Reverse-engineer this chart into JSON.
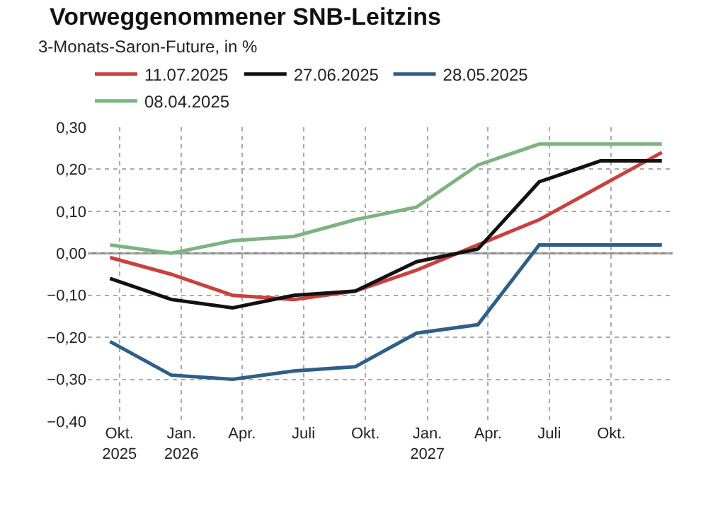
{
  "chart_data": {
    "type": "line",
    "title": "Vorweggenommener SNB-Leitzins",
    "subtitle": "3-Monats-Saron-Future, in %",
    "x": [
      "2025-09-17",
      "2025-12-17",
      "2026-03-18",
      "2026-06-17",
      "2026-09-16",
      "2026-12-16",
      "2027-03-17",
      "2027-06-16",
      "2027-09-15",
      "2027-12-15"
    ],
    "series": [
      {
        "name": "11.07.2025",
        "color": "#c8413f",
        "values": [
          -0.01,
          -0.05,
          -0.1,
          -0.11,
          -0.09,
          -0.04,
          0.02,
          0.08,
          0.16,
          0.24
        ]
      },
      {
        "name": "27.06.2025",
        "color": "#111111",
        "values": [
          -0.06,
          -0.11,
          -0.13,
          -0.1,
          -0.09,
          -0.02,
          0.01,
          0.17,
          0.22,
          0.22
        ]
      },
      {
        "name": "28.05.2025",
        "color": "#2f5f86",
        "values": [
          -0.21,
          -0.29,
          -0.3,
          -0.28,
          -0.27,
          -0.19,
          -0.17,
          0.02,
          0.02,
          0.02
        ]
      },
      {
        "name": "08.04.2025",
        "color": "#7fb283",
        "values": [
          0.02,
          0.0,
          0.03,
          0.04,
          0.08,
          0.11,
          0.21,
          0.26,
          0.26,
          0.26
        ]
      }
    ],
    "xlim": [
      "2025-08-15",
      "2027-12-31"
    ],
    "xticks": [
      {
        "value": "2025-10-01",
        "label": "Okt.\n2025"
      },
      {
        "value": "2026-01-01",
        "label": "Jan.\n2026"
      },
      {
        "value": "2026-04-01",
        "label": "Apr."
      },
      {
        "value": "2026-07-01",
        "label": "Juli"
      },
      {
        "value": "2026-10-01",
        "label": "Okt."
      },
      {
        "value": "2027-01-01",
        "label": "Jan.\n2027"
      },
      {
        "value": "2027-04-01",
        "label": "Apr."
      },
      {
        "value": "2027-07-01",
        "label": "Juli"
      },
      {
        "value": "2027-10-01",
        "label": "Okt."
      }
    ],
    "ylim": [
      -0.4,
      0.3
    ],
    "yticks": [
      {
        "value": -0.4,
        "label": "−0,40"
      },
      {
        "value": -0.3,
        "label": "−0,30"
      },
      {
        "value": -0.2,
        "label": "−0,20"
      },
      {
        "value": -0.1,
        "label": "−0,10"
      },
      {
        "value": 0,
        "label": "0,00"
      },
      {
        "value": 0.1,
        "label": "0,10"
      },
      {
        "value": 0.2,
        "label": "0,20"
      },
      {
        "value": 0.3,
        "label": "0,30"
      }
    ],
    "ref_lines": [
      {
        "axis": "y",
        "value": 0,
        "label": null,
        "color": "#888888"
      }
    ],
    "grid": true,
    "legend": "top left",
    "line_style": "solid",
    "marker": "none"
  }
}
